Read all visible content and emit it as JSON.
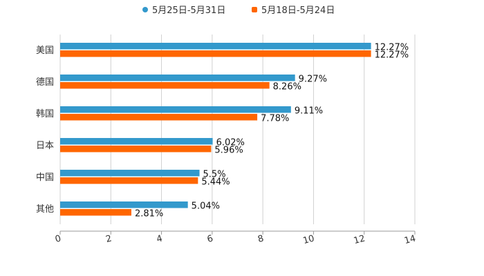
{
  "chart_data": {
    "type": "bar",
    "orientation": "horizontal",
    "categories": [
      "美国",
      "德国",
      "韩国",
      "日本",
      "中国",
      "其他"
    ],
    "series": [
      {
        "name": "5月25日-5月31日",
        "color": "#3399cc",
        "values": [
          12.27,
          9.27,
          9.11,
          6.02,
          5.5,
          5.04
        ],
        "labels": [
          "12.27%",
          "9.27%",
          "9.11%",
          "6.02%",
          "5.5%",
          "5.04%"
        ]
      },
      {
        "name": "5月18日-5月24日",
        "color": "#ff6600",
        "values": [
          12.27,
          8.26,
          7.78,
          5.96,
          5.44,
          2.81
        ],
        "labels": [
          "12.27%",
          "8.26%",
          "7.78%",
          "5.96%",
          "5.44%",
          "2.81%"
        ]
      }
    ],
    "xlim": [
      0,
      14
    ],
    "xticks": [
      "0",
      "2",
      "4",
      "6",
      "8",
      "10",
      "12",
      "14"
    ],
    "grid": true,
    "legend": "top-center",
    "title": "",
    "xlabel": "",
    "ylabel": ""
  }
}
